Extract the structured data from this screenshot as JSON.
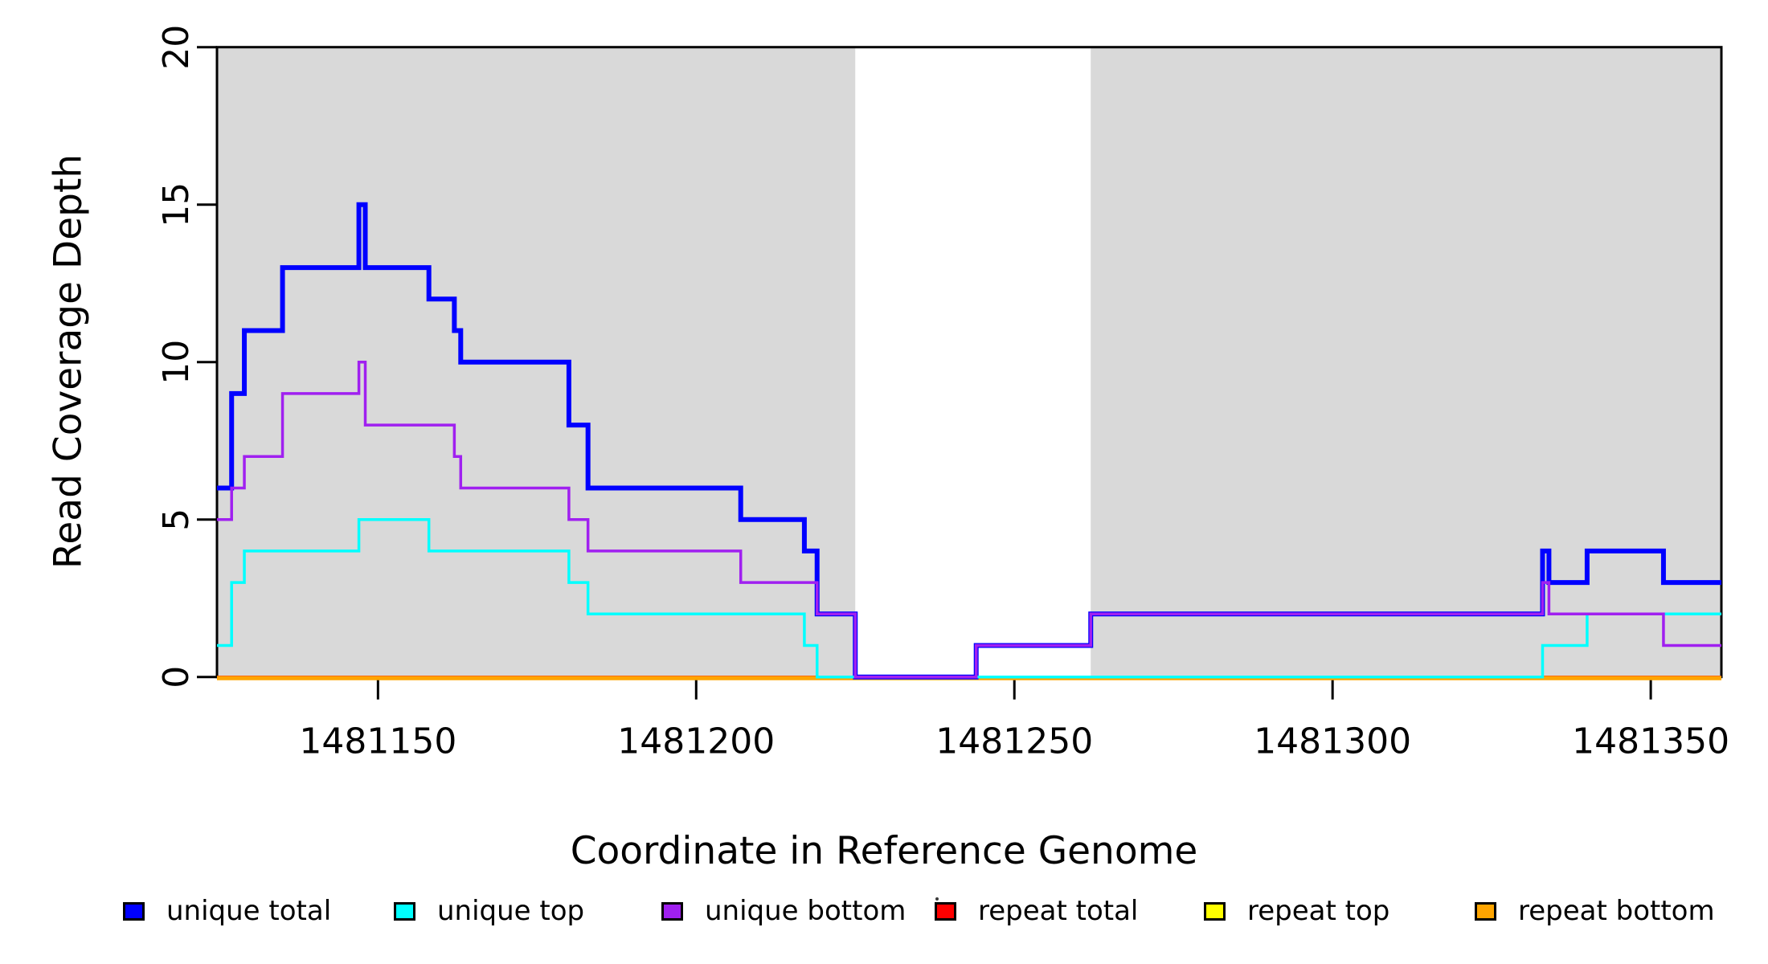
{
  "figure": {
    "xlabel": "Coordinate in Reference Genome",
    "ylabel": "Read Coverage Depth"
  },
  "chart_data": {
    "type": "line",
    "subtype": "step-coverage-plot",
    "title": "",
    "xlabel": "Coordinate in Reference Genome",
    "ylabel": "Read Coverage Depth",
    "xlim": [
      1481124.7,
      1481361.1
    ],
    "ylim": [
      0,
      20
    ],
    "x_ticks": [
      1481150,
      1481200,
      1481250,
      1481300,
      1481350
    ],
    "y_ticks": [
      0,
      5,
      10,
      15,
      20
    ],
    "grid": false,
    "legend_position": "bottom",
    "plot_background": "#ffffff",
    "shaded_regions": [
      {
        "x0": 1481124.7,
        "x1": 1481225,
        "color": "#D9D9D9"
      },
      {
        "x0": 1481262,
        "x1": 1481361.1,
        "color": "#D9D9D9"
      }
    ],
    "series": [
      {
        "name": "unique total",
        "color": "#0000FF",
        "line_width": 6,
        "steps": [
          [
            1481124.7,
            6
          ],
          [
            1481127,
            9
          ],
          [
            1481129,
            11
          ],
          [
            1481135,
            13
          ],
          [
            1481147,
            15
          ],
          [
            1481148,
            13
          ],
          [
            1481158,
            12
          ],
          [
            1481162,
            11
          ],
          [
            1481163,
            10
          ],
          [
            1481180,
            8
          ],
          [
            1481183,
            6
          ],
          [
            1481207,
            5
          ],
          [
            1481217,
            4
          ],
          [
            1481219,
            2
          ],
          [
            1481225,
            0
          ],
          [
            1481244,
            1
          ],
          [
            1481262,
            2
          ],
          [
            1481333,
            4
          ],
          [
            1481334,
            3
          ],
          [
            1481340,
            4
          ],
          [
            1481352,
            3
          ]
        ],
        "x_end": 1481361.1
      },
      {
        "name": "unique top",
        "color": "#00FFFF",
        "line_width": 3.5,
        "steps": [
          [
            1481124.7,
            1
          ],
          [
            1481127,
            3
          ],
          [
            1481129,
            4
          ],
          [
            1481147,
            5
          ],
          [
            1481158,
            4
          ],
          [
            1481180,
            3
          ],
          [
            1481183,
            2
          ],
          [
            1481217,
            1
          ],
          [
            1481219,
            0
          ],
          [
            1481333,
            1
          ],
          [
            1481340,
            2
          ]
        ],
        "x_end": 1481361.1
      },
      {
        "name": "unique bottom",
        "color": "#A020F0",
        "line_width": 3.5,
        "steps": [
          [
            1481124.7,
            5
          ],
          [
            1481127,
            6
          ],
          [
            1481129,
            7
          ],
          [
            1481135,
            9
          ],
          [
            1481147,
            10
          ],
          [
            1481148,
            8
          ],
          [
            1481162,
            7
          ],
          [
            1481163,
            6
          ],
          [
            1481180,
            5
          ],
          [
            1481183,
            4
          ],
          [
            1481207,
            3
          ],
          [
            1481219,
            2
          ],
          [
            1481225,
            0
          ],
          [
            1481244,
            1
          ],
          [
            1481262,
            2
          ],
          [
            1481333,
            3
          ],
          [
            1481334,
            2
          ],
          [
            1481352,
            1
          ]
        ],
        "x_end": 1481361.1
      },
      {
        "name": "repeat total",
        "color": "#FF0000",
        "line_width": 3.5,
        "steps": [
          [
            1481124.7,
            0
          ]
        ],
        "x_end": 1481361.1
      },
      {
        "name": "repeat top",
        "color": "#FFFF00",
        "line_width": 3.5,
        "steps": [
          [
            1481124.7,
            0
          ]
        ],
        "x_end": 1481361.1
      },
      {
        "name": "repeat bottom",
        "color": "#FFA500",
        "line_width": 5,
        "steps": [
          [
            1481124.7,
            0
          ]
        ],
        "x_end": 1481361.1
      }
    ],
    "legend": [
      {
        "label": "unique total",
        "color": "#0000FF"
      },
      {
        "label": "unique top",
        "color": "#00FFFF"
      },
      {
        "label": "unique bottom",
        "color": "#A020F0"
      },
      {
        "label": "repeat total",
        "color": "#FF0000"
      },
      {
        "label": "repeat top",
        "color": "#FFFF00"
      },
      {
        "label": "repeat bottom",
        "color": "#FFA500"
      }
    ]
  }
}
